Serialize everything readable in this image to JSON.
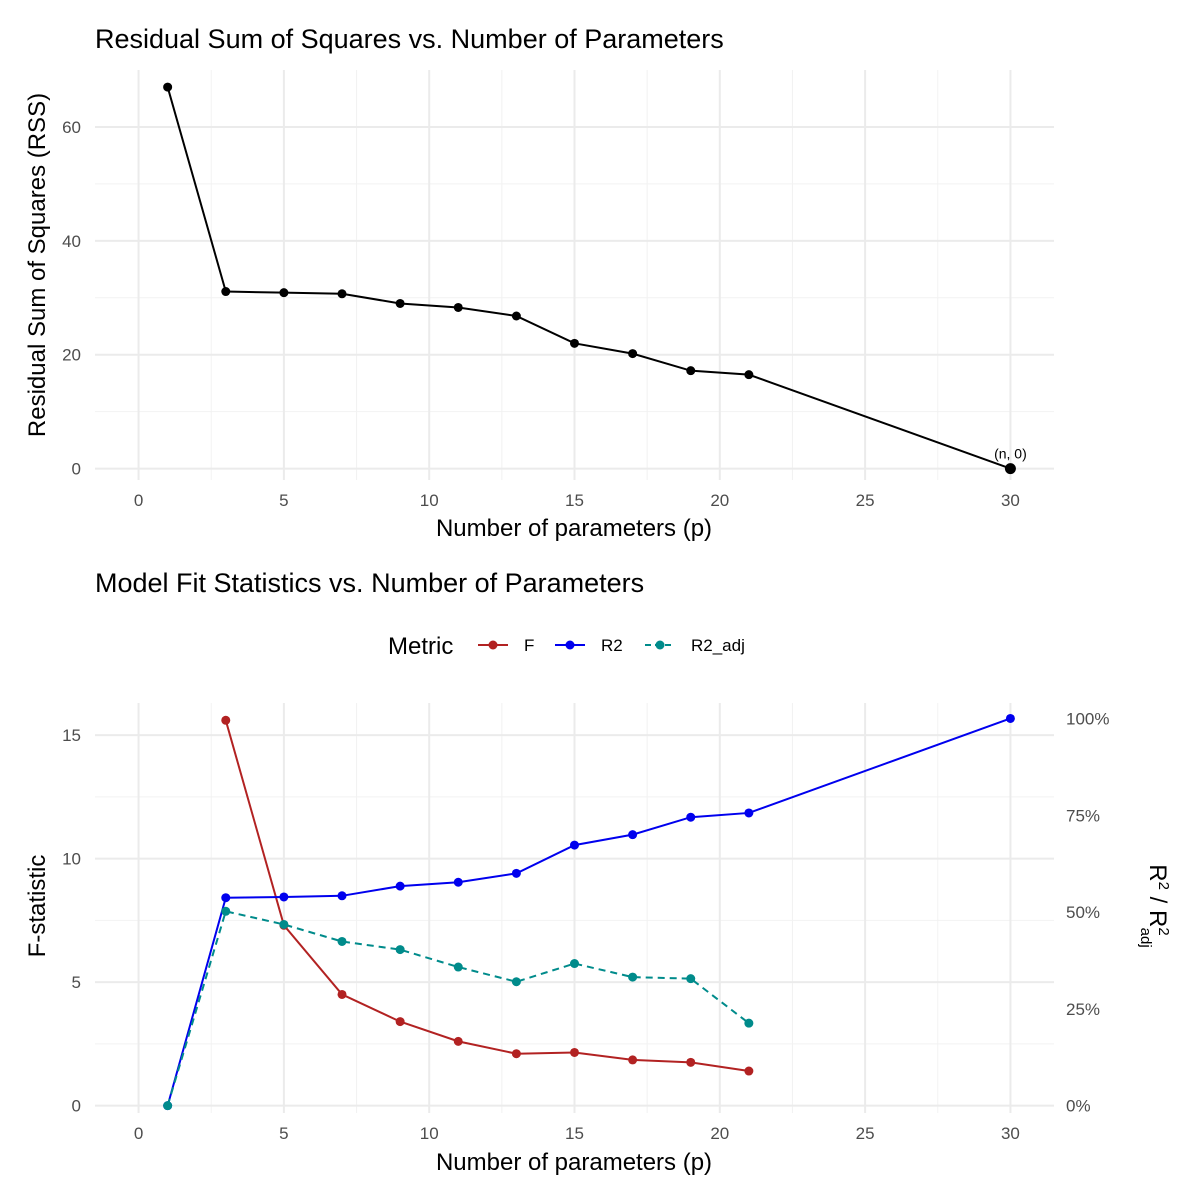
{
  "chart_data": [
    {
      "type": "line",
      "title": "Residual Sum of Squares vs. Number of Parameters",
      "xlabel": "Number of parameters (p)",
      "ylabel": "Residual Sum of Squares (RSS)",
      "xlim": [
        -1.5,
        31.5
      ],
      "ylim": [
        -2,
        70
      ],
      "x_ticks": [
        0,
        5,
        10,
        15,
        20,
        25,
        30
      ],
      "y_ticks": [
        0,
        20,
        40,
        60
      ],
      "grid": true,
      "series": [
        {
          "color": "#000000",
          "x": [
            1,
            3,
            5,
            7,
            9,
            11,
            13,
            15,
            17,
            19,
            21,
            30
          ],
          "y": [
            67,
            31.1,
            30.9,
            30.7,
            29,
            28.3,
            26.8,
            22,
            20.2,
            17.2,
            16.5,
            0
          ]
        }
      ],
      "annotations": [
        {
          "x": 30,
          "y": 0,
          "text": "(n, 0)"
        }
      ]
    },
    {
      "type": "line",
      "title": "Model Fit Statistics vs. Number of Parameters",
      "xlabel": "Number of parameters (p)",
      "ylabel": "F-statistic",
      "y2label": "R² / R²adj",
      "xlim": [
        -1.5,
        31.5
      ],
      "ylim": [
        -0.3,
        16.3
      ],
      "y2lim_percent": [
        -1.9,
        104
      ],
      "x_ticks": [
        0,
        5,
        10,
        15,
        20,
        25,
        30
      ],
      "y_ticks": [
        0,
        5,
        10,
        15
      ],
      "y2_ticks": [
        "0%",
        "25%",
        "50%",
        "75%",
        "100%"
      ],
      "y2_tick_values": [
        0,
        25,
        50,
        75,
        100
      ],
      "grid": true,
      "legend_title": "Metric",
      "legend_position": "top",
      "series": [
        {
          "name": "F",
          "axis": "left",
          "color": "#b22222",
          "dash": false,
          "x": [
            3,
            5,
            7,
            9,
            11,
            13,
            15,
            17,
            19,
            21
          ],
          "y": [
            15.6,
            7.3,
            4.5,
            3.4,
            2.6,
            2.1,
            2.15,
            1.85,
            1.75,
            1.4
          ]
        },
        {
          "name": "R2",
          "axis": "right",
          "color": "#0000ee",
          "dash": false,
          "x": [
            1,
            3,
            5,
            7,
            9,
            11,
            13,
            15,
            17,
            19,
            21,
            30
          ],
          "y": [
            0,
            53.7,
            53.9,
            54.2,
            56.7,
            57.7,
            60.0,
            67.3,
            70.0,
            74.5,
            75.6,
            100
          ]
        },
        {
          "name": "R2_adj",
          "axis": "right",
          "color": "#008b8b",
          "dash": true,
          "x": [
            1,
            3,
            5,
            7,
            9,
            11,
            13,
            15,
            17,
            19,
            21
          ],
          "y": [
            0,
            50.2,
            46.8,
            42.4,
            40.3,
            35.8,
            32.0,
            36.7,
            33.2,
            32.8,
            21.3
          ]
        }
      ]
    }
  ]
}
